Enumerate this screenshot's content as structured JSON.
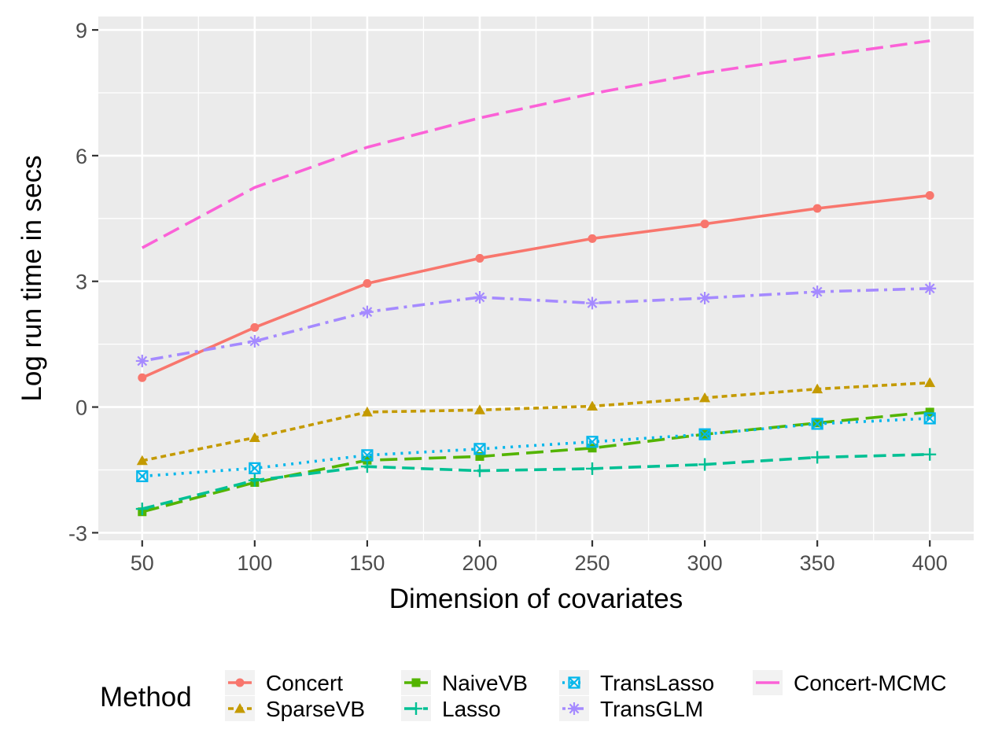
{
  "chart_data": {
    "type": "line",
    "title": "",
    "xlabel": "Dimension of covariates",
    "ylabel": "Log run time in secs",
    "x": [
      50,
      100,
      150,
      200,
      250,
      300,
      350,
      400
    ],
    "xticks": [
      50,
      100,
      150,
      200,
      250,
      300,
      350,
      400
    ],
    "xtick_labels": [
      "50",
      "100",
      "150",
      "200",
      "250",
      "300",
      "350",
      "400"
    ],
    "yticks": [
      -3,
      0,
      3,
      6,
      9
    ],
    "ytick_labels": [
      "-3",
      "0",
      "3",
      "6",
      "9"
    ],
    "xlim": [
      30.5,
      419.5
    ],
    "ylim": [
      -3.18,
      9.32
    ],
    "grid": true,
    "legend": {
      "title": "Method",
      "position": "bottom",
      "columns": [
        [
          "Concert",
          "SparseVB"
        ],
        [
          "NaiveVB",
          "Lasso"
        ],
        [
          "TransLasso",
          "TransGLM"
        ],
        [
          "Concert-MCMC"
        ]
      ]
    },
    "series": [
      {
        "name": "Concert",
        "color": "#F8766D",
        "shape": "circle",
        "linetype": "solid",
        "values": [
          0.7,
          1.9,
          2.95,
          3.55,
          4.02,
          4.37,
          4.74,
          5.05
        ]
      },
      {
        "name": "SparseVB",
        "color": "#C49A00",
        "shape": "triangle",
        "linetype": "dashed",
        "values": [
          -1.28,
          -0.73,
          -0.12,
          -0.07,
          0.02,
          0.22,
          0.43,
          0.58
        ]
      },
      {
        "name": "NaiveVB",
        "color": "#53B400",
        "shape": "square",
        "linetype": "longdash",
        "values": [
          -2.5,
          -1.8,
          -1.27,
          -1.18,
          -0.98,
          -0.65,
          -0.38,
          -0.12
        ]
      },
      {
        "name": "Lasso",
        "color": "#00C094",
        "shape": "plus",
        "linetype": "dash",
        "values": [
          -2.43,
          -1.75,
          -1.42,
          -1.52,
          -1.47,
          -1.37,
          -1.2,
          -1.13
        ]
      },
      {
        "name": "TransLasso",
        "color": "#00B6EB",
        "shape": "square-x",
        "linetype": "dotted",
        "values": [
          -1.65,
          -1.46,
          -1.15,
          -1.0,
          -0.83,
          -0.65,
          -0.4,
          -0.27
        ]
      },
      {
        "name": "TransGLM",
        "color": "#A58AFF",
        "shape": "asterisk",
        "linetype": "dotdash",
        "values": [
          1.1,
          1.57,
          2.27,
          2.62,
          2.48,
          2.6,
          2.75,
          2.83
        ]
      },
      {
        "name": "Concert-MCMC",
        "color": "#FB61D7",
        "shape": "none",
        "linetype": "longdash",
        "values": [
          3.8,
          5.24,
          6.2,
          6.9,
          7.48,
          7.98,
          8.37,
          8.74
        ]
      }
    ]
  }
}
